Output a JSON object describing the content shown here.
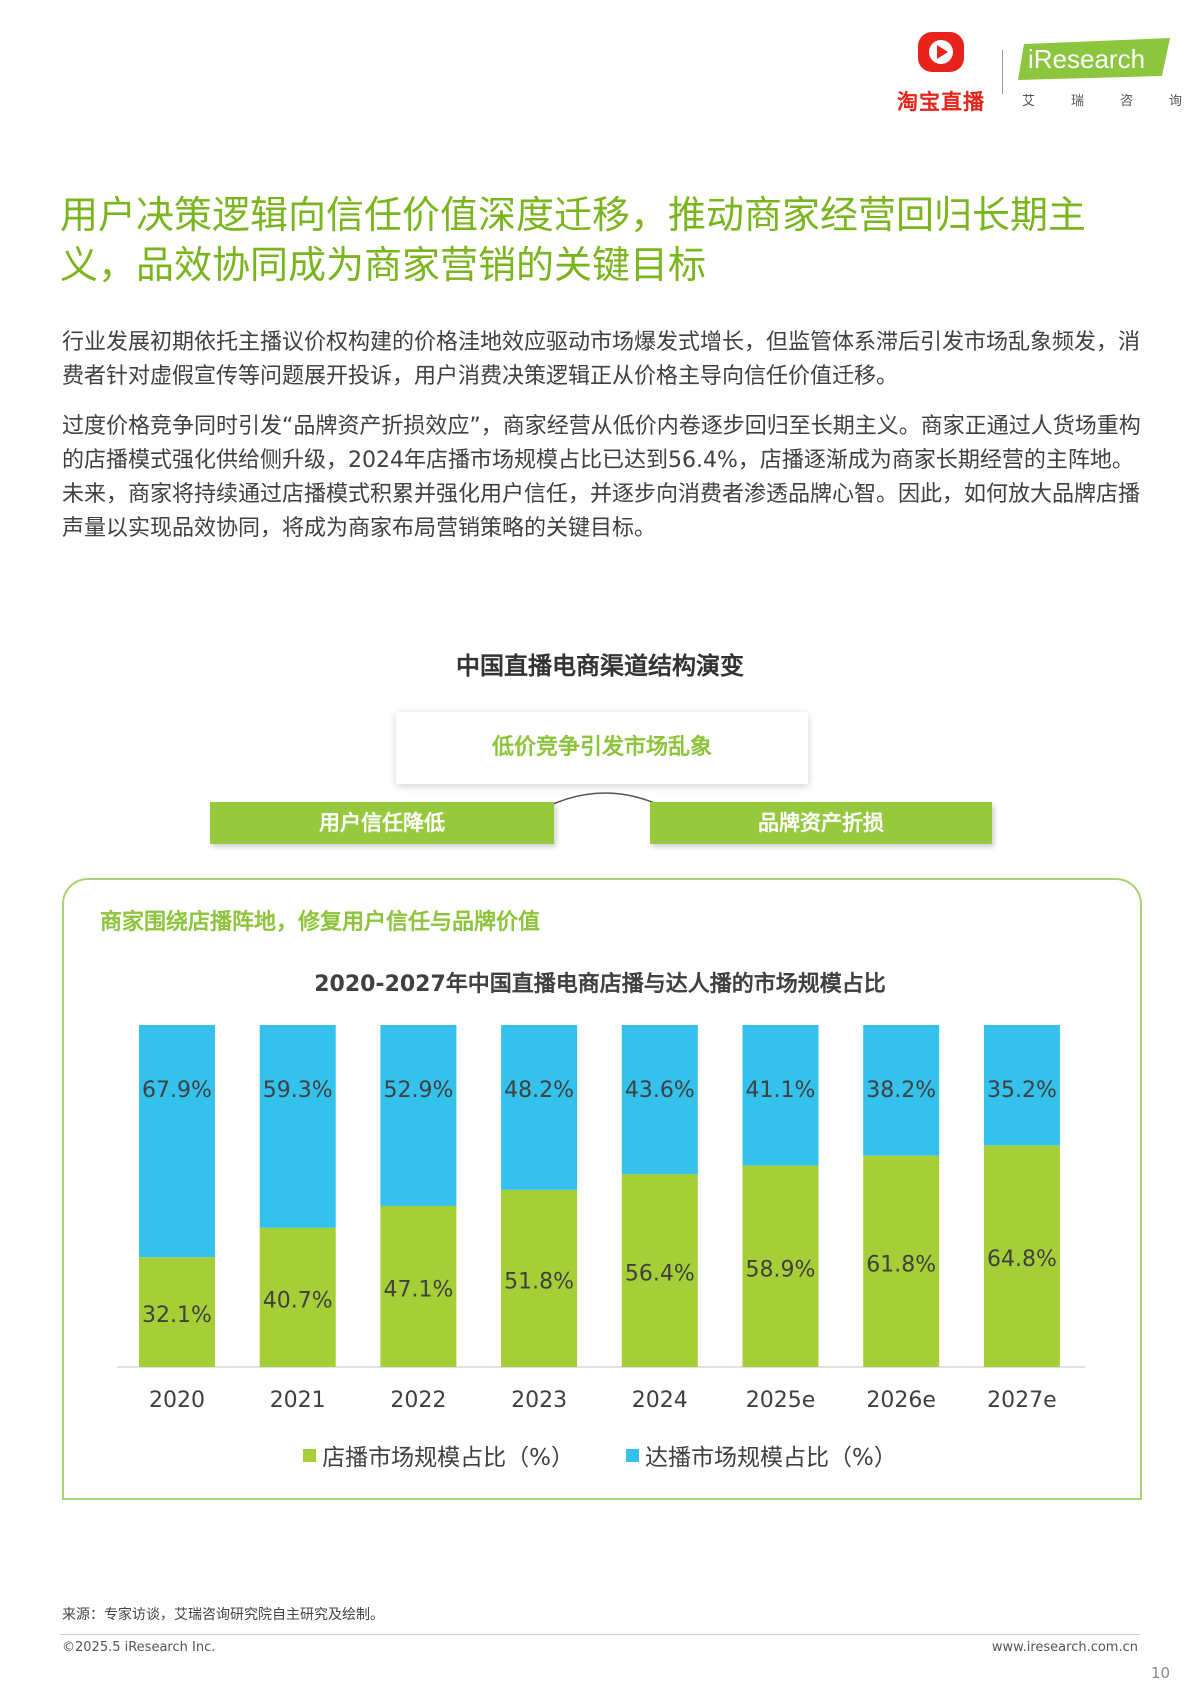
{
  "header": {
    "taobao_logo_text": "淘宝直播",
    "iresearch_logo_text": "iResearch",
    "iresearch_sub_chars": [
      "艾",
      "瑞",
      "咨",
      "询"
    ]
  },
  "headline": "用户决策逻辑向信任价值深度迁移，推动商家经营回归长期主义，品效协同成为商家营销的关键目标",
  "paragraphs": [
    "行业发展初期依托主播议价权构建的价格洼地效应驱动市场爆发式增长，但监管体系滞后引发市场乱象频发，消费者针对虚假宣传等问题展开投诉，用户消费决策逻辑正从价格主导向信任价值迁移。",
    "过度价格竞争同时引发“品牌资产折损效应”，商家经营从低价内卷逐步回归至长期主义。商家正通过人货场重构的店播模式强化供给侧升级，2024年店播市场规模占比已达到56.4%，店播逐渐成为商家长期经营的主阵地。未来，商家将持续通过店播模式积累并强化用户信任，并逐步向消费者渗透品牌心智。因此，如何放大品牌店播声量以实现品效协同，将成为商家布局营销策略的关键目标。"
  ],
  "diagram": {
    "title": "中国直播电商渠道结构演变",
    "top_box": "低价竞争引发市场乱象",
    "left_box": "用户信任降低",
    "right_box": "品牌资产折损",
    "panel_heading": "商家围绕店播阵地，修复用户信任与品牌价值"
  },
  "chart_data": {
    "type": "bar",
    "stacked": true,
    "title": "2020-2027年中国直播电商店播与达人播的市场规模占比",
    "categories": [
      "2020",
      "2021",
      "2022",
      "2023",
      "2024",
      "2025e",
      "2026e",
      "2027e"
    ],
    "series": [
      {
        "name": "店播市场规模占比（%）",
        "color": "#a6cf37",
        "values": [
          32.1,
          40.7,
          47.1,
          51.8,
          56.4,
          58.9,
          61.8,
          64.8
        ]
      },
      {
        "name": "达播市场规模占比（%）",
        "color": "#34c1ec",
        "values": [
          67.9,
          59.3,
          52.9,
          48.2,
          43.6,
          41.1,
          38.2,
          35.2
        ]
      }
    ],
    "ylim": [
      0,
      100
    ],
    "value_suffix": "%",
    "legend_position": "bottom"
  },
  "footer": {
    "source": "来源：专家访谈，艾瑞咨询研究院自主研究及绘制。",
    "copyright": "©2025.5 iResearch Inc.",
    "website": "www.iresearch.com.cn",
    "page_number": "10"
  },
  "colors": {
    "accent_green": "#7ab51d",
    "bar_green": "#a6cf37",
    "bar_blue": "#34c1ec",
    "taobao_red": "#e8231b"
  }
}
